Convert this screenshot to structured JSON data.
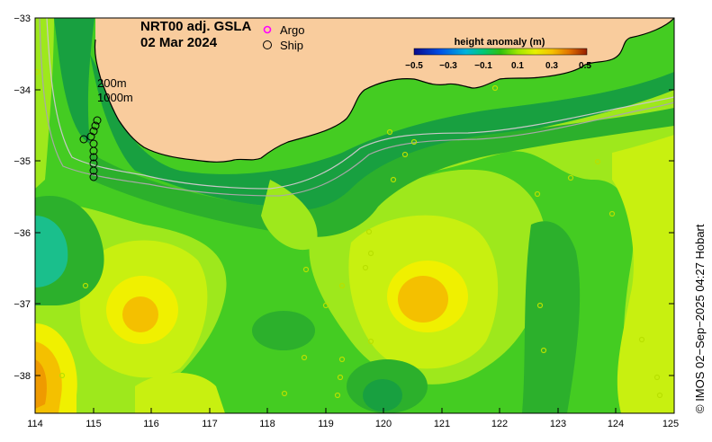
{
  "title": {
    "line1": "NRT00 adj. GSLA",
    "line2": "02 Mar 2024"
  },
  "legend": {
    "argo_label": "Argo",
    "ship_label": "Ship",
    "argo_color": "#ff00ff",
    "ship_color": "#000000"
  },
  "contours": {
    "label_200": "200m",
    "label_1000": "1000m"
  },
  "colorbar": {
    "title": "height anomaly (m)",
    "ticks": [
      "−0.5",
      "−0.3",
      "−0.1",
      "0.1",
      "0.3",
      "0.5"
    ],
    "colors": [
      "#0a0a8c",
      "#0050e6",
      "#00b4dc",
      "#00c878",
      "#14b428",
      "#50d200",
      "#a0e600",
      "#e6f000",
      "#f5c800",
      "#eb8c00",
      "#c85000",
      "#961e00"
    ]
  },
  "axes": {
    "x_ticks": [
      "114",
      "115",
      "116",
      "117",
      "118",
      "119",
      "120",
      "121",
      "122",
      "123",
      "124",
      "125"
    ],
    "y_ticks": [
      "−33",
      "−34",
      "−35",
      "−36",
      "−37",
      "−38"
    ]
  },
  "credit": "© IMOS 02−Sep−2025 04:27 Hobart",
  "map_colors": {
    "land": "#f9cc9d",
    "base_green": "#44cc22",
    "mid_green": "#2cb02c",
    "dark_green": "#18a040",
    "teal": "#1abf8c",
    "lime": "#9ee81c",
    "yellow_green": "#c8f010",
    "yellow": "#f0f000",
    "orange_yellow": "#f4c000",
    "orange": "#ef9a00"
  }
}
